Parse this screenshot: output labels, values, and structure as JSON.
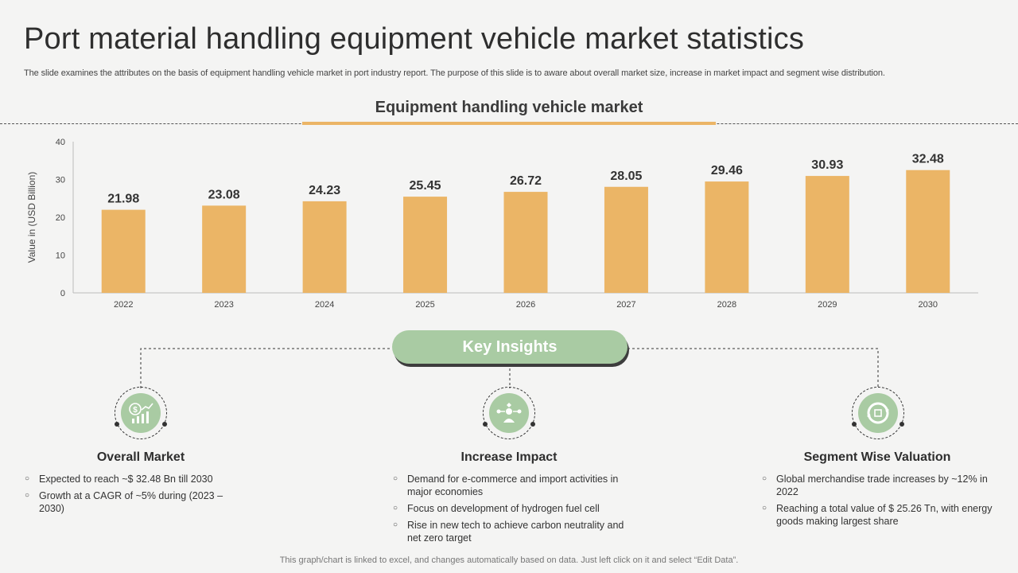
{
  "header": {
    "title": "Port material handling equipment vehicle market statistics",
    "subtitle": "The slide examines the attributes on the basis of equipment handling vehicle market in port industry report. The purpose of this slide is to aware about overall market size, increase in market impact and segment wise distribution."
  },
  "section_title": "Equipment handling vehicle market",
  "chart_data": {
    "type": "bar",
    "title": "Equipment handling vehicle market",
    "categories": [
      "2022",
      "2023",
      "2024",
      "2025",
      "2026",
      "2027",
      "2028",
      "2029",
      "2030"
    ],
    "values": [
      21.98,
      23.08,
      24.23,
      25.45,
      26.72,
      28.05,
      29.46,
      30.93,
      32.48
    ],
    "value_labels": [
      "21.98",
      "23.08",
      "24.23",
      "25.45",
      "26.72",
      "28.05",
      "29.46",
      "30.93",
      "32.48"
    ],
    "ylabel": "Value in (USD Billion)",
    "xlabel": "",
    "ylim": [
      0,
      40
    ],
    "yticks": [
      "0",
      "10",
      "20",
      "30",
      "40"
    ],
    "grid": false,
    "legend": "none",
    "bar_color": "#ebb566"
  },
  "insights": {
    "label": "Key Insights",
    "columns": [
      {
        "title": "Overall Market",
        "icon": "dollar-growth-icon",
        "bullets": [
          "Expected to reach ~$ 32.48 Bn till 2030",
          "Growth at a CAGR of ~5% during (2023 – 2030)"
        ]
      },
      {
        "title": "Increase Impact",
        "icon": "person-network-icon",
        "bullets": [
          "Demand for e-commerce and import activities in major economies",
          "Focus on development  of hydrogen fuel cell",
          "Rise in new tech to achieve carbon neutrality and net zero target"
        ]
      },
      {
        "title": "Segment Wise Valuation",
        "icon": "cycle-arrows-icon",
        "bullets": [
          "Global merchandise trade increases by ~12% in 2022",
          "Reaching a total value  of $ 25.26 Tn, with energy goods making largest share"
        ]
      }
    ]
  },
  "footer": "This graph/chart is linked to excel,  and changes automatically based on data. Just left click on it and select “Edit Data”.",
  "colors": {
    "accent_orange": "#ebb566",
    "accent_green": "#a9cba3"
  }
}
